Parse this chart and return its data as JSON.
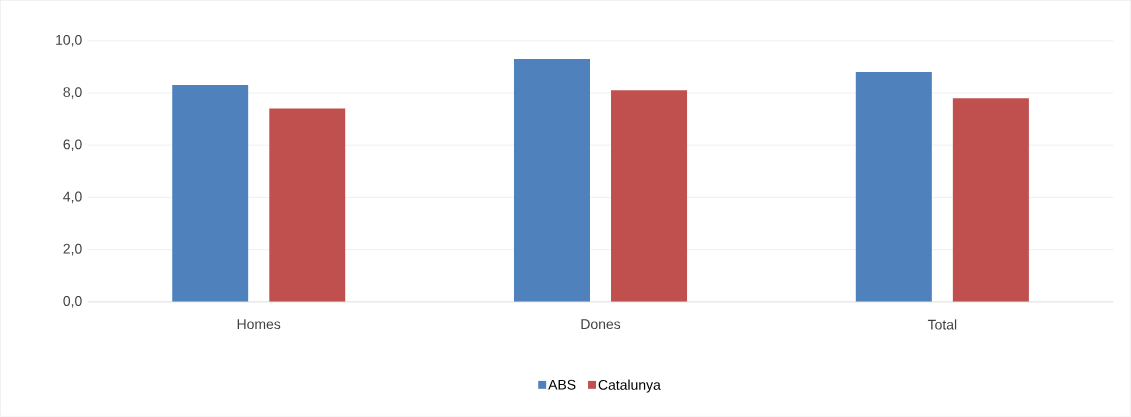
{
  "chart_data": {
    "type": "bar",
    "categories": [
      "Homes",
      "Dones",
      "Total"
    ],
    "series": [
      {
        "name": "ABS",
        "color": "#4f81bd",
        "values": [
          8.3,
          9.3,
          8.8
        ]
      },
      {
        "name": "Catalunya",
        "color": "#c0504d",
        "values": [
          7.4,
          8.1,
          7.8
        ]
      }
    ],
    "ylim": [
      0,
      10
    ],
    "yticks": [
      {
        "value": 0,
        "label": "0,0"
      },
      {
        "value": 2,
        "label": "2,0"
      },
      {
        "value": 4,
        "label": "4,0"
      },
      {
        "value": 6,
        "label": "6,0"
      },
      {
        "value": 8,
        "label": "8,0"
      },
      {
        "value": 10,
        "label": "10,0"
      }
    ],
    "grid": "y",
    "legend": "bottom"
  }
}
